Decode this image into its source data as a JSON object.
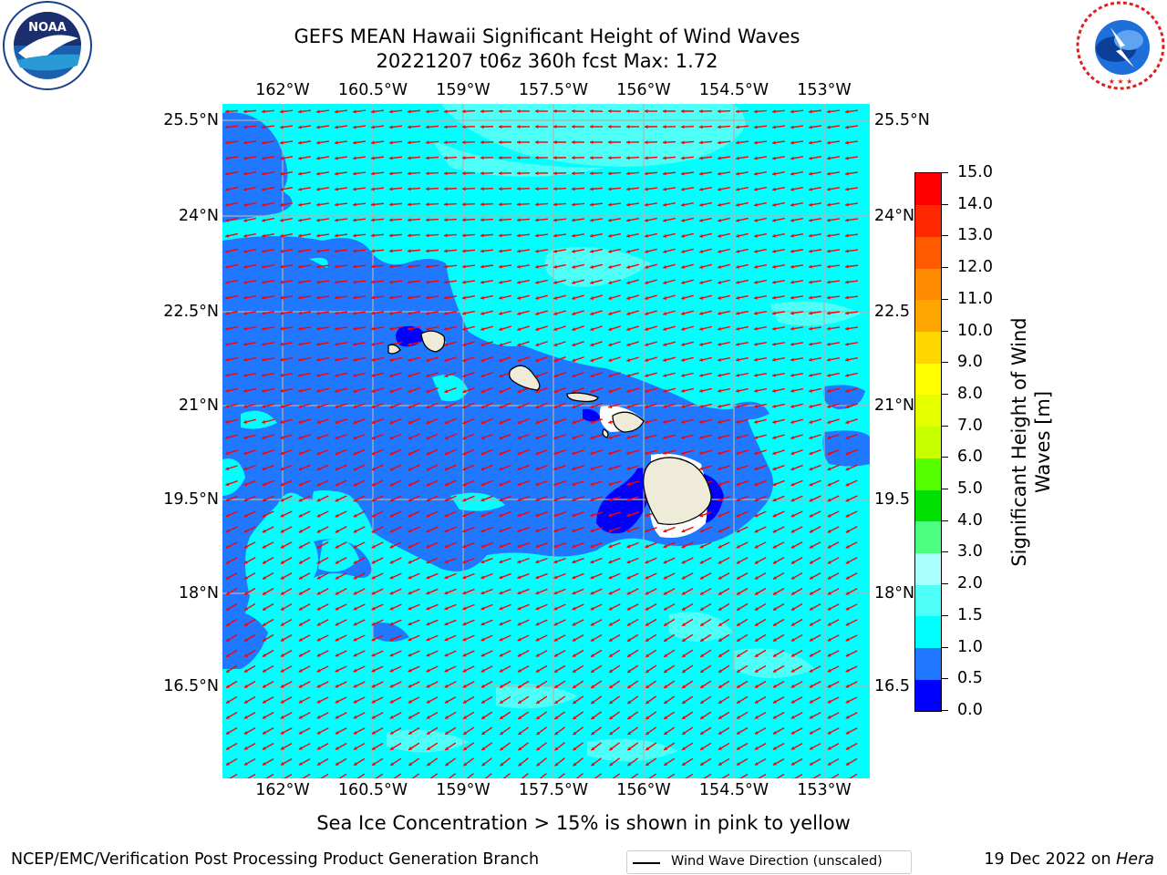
{
  "title": {
    "line1": "GEFS MEAN Hawaii Significant Height of Wind Waves",
    "line2": "20221207 t06z 360h fcst   Max: 1.72"
  },
  "logos": {
    "noaa": {
      "text": "NOAA",
      "ring_text": "NATIONAL OCEANIC AND ATMOSPHERIC ADMINISTRATION · U.S. DEPARTMENT OF COMMERCE"
    },
    "nws": {
      "ring_text": "NATIONAL WEATHER SERVICE"
    }
  },
  "map": {
    "lon_ticks": [
      "162°W",
      "160.5°W",
      "159°W",
      "157.5°W",
      "156°W",
      "154.5°W",
      "153°W"
    ],
    "lat_ticks": [
      "25.5°N",
      "24°N",
      "22.5°N",
      "21°N",
      "19.5°N",
      "18°N",
      "16.5°N"
    ],
    "right_lat_ticks": [
      "25.5°N",
      "24°N",
      "22.5",
      "21°N",
      "19.5",
      "18°N",
      "16.5"
    ],
    "legend_label": "Wind Wave Direction (unscaled)",
    "arrow_color": "#ff0000",
    "land_color": "#efebd9",
    "grid_color": "#b0b0b0"
  },
  "colorbar": {
    "title_line1": "Significant Height of Wind",
    "title_line2": "Waves [m]",
    "labels": [
      "0.0",
      "0.5",
      "1.0",
      "1.5",
      "2.0",
      "3.0",
      "4.0",
      "5.0",
      "6.0",
      "7.0",
      "8.0",
      "9.0",
      "10.0",
      "11.0",
      "12.0",
      "13.0",
      "14.0",
      "15.0"
    ],
    "colors": [
      "#0000ff",
      "#1f78ff",
      "#00ffff",
      "#4dfff6",
      "#aaffff",
      "#4dff80",
      "#00e000",
      "#55ff00",
      "#c8ff00",
      "#e6ff00",
      "#ffff00",
      "#ffd700",
      "#ffa500",
      "#ff8c00",
      "#ff5a00",
      "#ff2800",
      "#ff0000"
    ]
  },
  "footnote": "Sea Ice Concentration > 15% is shown in pink to yellow",
  "credits": {
    "left": "NCEP/EMC/Verification Post Processing Product Generation Branch",
    "right_prefix": "19 Dec 2022 on ",
    "right_host": "Hera"
  }
}
